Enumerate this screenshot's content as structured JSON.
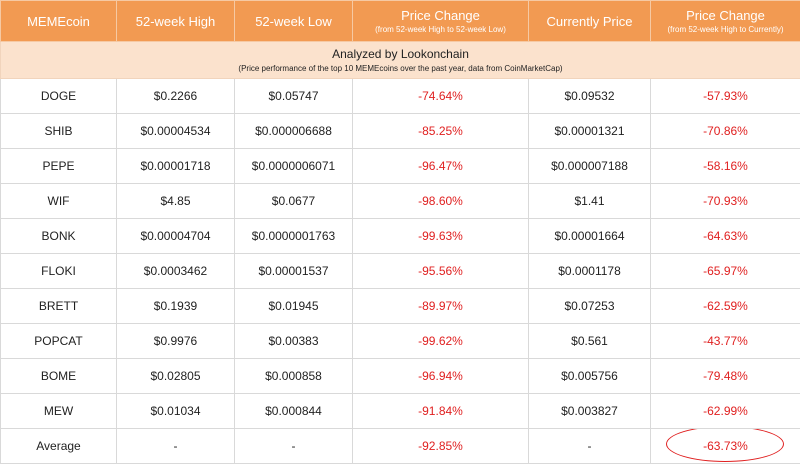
{
  "columns": [
    {
      "main": "MEMEcoin",
      "sub": ""
    },
    {
      "main": "52-week High",
      "sub": ""
    },
    {
      "main": "52-week Low",
      "sub": ""
    },
    {
      "main": "Price Change",
      "sub": "(from 52-week High to 52-week Low)"
    },
    {
      "main": "Currently Price",
      "sub": ""
    },
    {
      "main": "Price Change",
      "sub": "(from 52-week High to Currently)"
    }
  ],
  "banner": {
    "title": "Analyzed by Lookonchain",
    "subtitle": "(Price performance of the top 10 MEMEcoins over the past year, data from CoinMarketCap)"
  },
  "rows": [
    [
      "DOGE",
      "$0.2266",
      "$0.05747",
      "-74.64%",
      "$0.09532",
      "-57.93%"
    ],
    [
      "SHIB",
      "$0.00004534",
      "$0.000006688",
      "-85.25%",
      "$0.00001321",
      "-70.86%"
    ],
    [
      "PEPE",
      "$0.00001718",
      "$0.0000006071",
      "-96.47%",
      "$0.000007188",
      "-58.16%"
    ],
    [
      "WIF",
      "$4.85",
      "$0.0677",
      "-98.60%",
      "$1.41",
      "-70.93%"
    ],
    [
      "BONK",
      "$0.00004704",
      "$0.0000001763",
      "-99.63%",
      "$0.00001664",
      "-64.63%"
    ],
    [
      "FLOKI",
      "$0.0003462",
      "$0.00001537",
      "-95.56%",
      "$0.0001178",
      "-65.97%"
    ],
    [
      "BRETT",
      "$0.1939",
      "$0.01945",
      "-89.97%",
      "$0.07253",
      "-62.59%"
    ],
    [
      "POPCAT",
      "$0.9976",
      "$0.00383",
      "-99.62%",
      "$0.561",
      "-43.77%"
    ],
    [
      "BOME",
      "$0.02805",
      "$0.000858",
      "-96.94%",
      "$0.005756",
      "-79.48%"
    ],
    [
      "MEW",
      "$0.01034",
      "$0.000844",
      "-91.84%",
      "$0.003827",
      "-62.99%"
    ],
    [
      "Average",
      "-",
      "-",
      "-92.85%",
      "-",
      "-63.73%"
    ]
  ],
  "colors": {
    "header_bg": "#f29a52",
    "banner_bg": "#fbe2cd",
    "negative_text": "#e02020",
    "highlight_circle": "#e02020"
  }
}
